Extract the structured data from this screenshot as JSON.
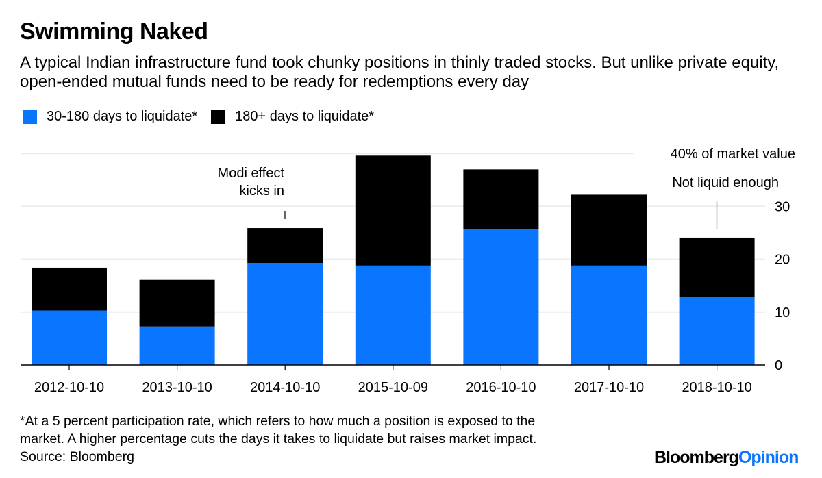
{
  "header": {
    "title": "Swimming Naked",
    "subtitle": "A typical Indian infrastructure fund took chunky positions in thinly traded stocks. But unlike private equity, open-ended mutual funds need to be ready for redemptions every day"
  },
  "colors": {
    "blue": "#0a75ff",
    "black": "#000000",
    "grid": "#ececec",
    "axis": "#000000"
  },
  "chart_data": {
    "type": "bar",
    "stacked": true,
    "title": "Swimming Naked",
    "xlabel": "",
    "ylabel": "",
    "y_axis_position": "right",
    "y_unit_label": "40% of market value",
    "ylim": [
      0,
      40
    ],
    "yticks": [
      0,
      10,
      20,
      30
    ],
    "grid": true,
    "legend_position": "top-left",
    "categories": [
      "2012-10-10",
      "2013-10-10",
      "2014-10-10",
      "2015-10-09",
      "2016-10-10",
      "2017-10-10",
      "2018-10-10"
    ],
    "series": [
      {
        "name": "30-180 days to liquidate*",
        "color": "#0a75ff",
        "values": [
          10.3,
          7.3,
          19.3,
          18.8,
          25.7,
          18.8,
          12.8
        ]
      },
      {
        "name": "180+ days to liquidate*",
        "color": "#000000",
        "values": [
          8.1,
          8.8,
          6.6,
          20.8,
          11.3,
          13.4,
          11.3
        ]
      }
    ],
    "annotations": [
      {
        "text_lines": [
          "Modi effect",
          "kicks in"
        ],
        "category": "2014-10-10"
      },
      {
        "text_lines": [
          "Not liquid enough"
        ],
        "category": "2018-10-10"
      }
    ]
  },
  "footer": {
    "footnote_lines": [
      "*At a 5 percent participation rate, which refers to how much a position is exposed to the",
      "market. A higher percentage cuts the days it takes to liquidate but raises market impact."
    ],
    "source": "Source: Bloomberg",
    "logo_part1": "Bloomberg",
    "logo_part2": "Opinion"
  }
}
